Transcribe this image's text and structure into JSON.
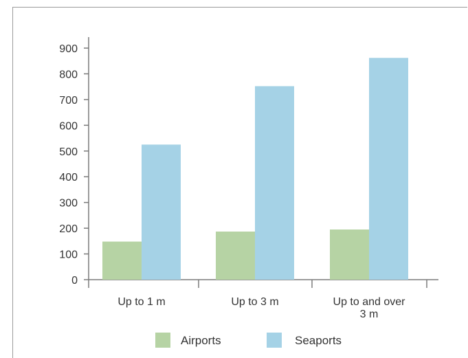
{
  "chart_data": {
    "type": "bar",
    "title": "",
    "xlabel": "",
    "ylabel": "",
    "categories": [
      [
        "Up to 1 m"
      ],
      [
        "Up to 3 m"
      ],
      [
        "Up to and over",
        "3 m"
      ]
    ],
    "series": [
      {
        "name": "Airports",
        "color": "#b6d3a4",
        "values": [
          148,
          187,
          195
        ]
      },
      {
        "name": "Seaports",
        "color": "#a5d2e6",
        "values": [
          525,
          752,
          862
        ]
      }
    ],
    "yticks": [
      0,
      100,
      200,
      300,
      400,
      500,
      600,
      700,
      800,
      900
    ],
    "ylim": [
      0,
      900
    ],
    "grid": false,
    "legend_position": "bottom"
  }
}
